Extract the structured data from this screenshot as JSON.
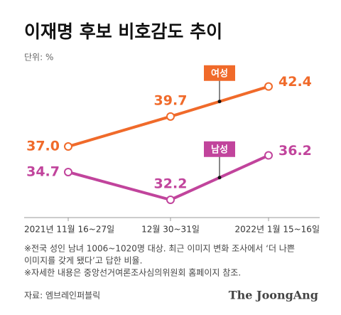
{
  "chart_data": {
    "type": "line",
    "title": "이재명 후보 비호감도 추이",
    "unit_label": "단위: %",
    "categories": [
      "2021년 11월 16~27일",
      "12월 30~31일",
      "2022년 1월 15~16일"
    ],
    "series": [
      {
        "name": "여성",
        "color": "#f06a2a",
        "values": [
          37.0,
          39.7,
          42.4
        ],
        "value_labels": [
          "37.0",
          "39.7",
          "42.4"
        ]
      },
      {
        "name": "남성",
        "color": "#c1449c",
        "values": [
          34.7,
          32.2,
          36.2
        ],
        "value_labels": [
          "34.7",
          "32.2",
          "36.2"
        ]
      }
    ],
    "ylim": [
      30.6,
      44.3
    ],
    "notes": [
      "※전국 성인 남녀 1006~1020명 대상. 최근 이미지 변화 조사에서 ‘더 나쁜",
      "이미지를 갖게 됐다’고 답한 비율.",
      "※자세한 내용은 중앙선거여론조사심의위원회 홈페이지 참조."
    ],
    "source": "자료: 엠브레인퍼블릭",
    "brand": "The JoongAng"
  }
}
